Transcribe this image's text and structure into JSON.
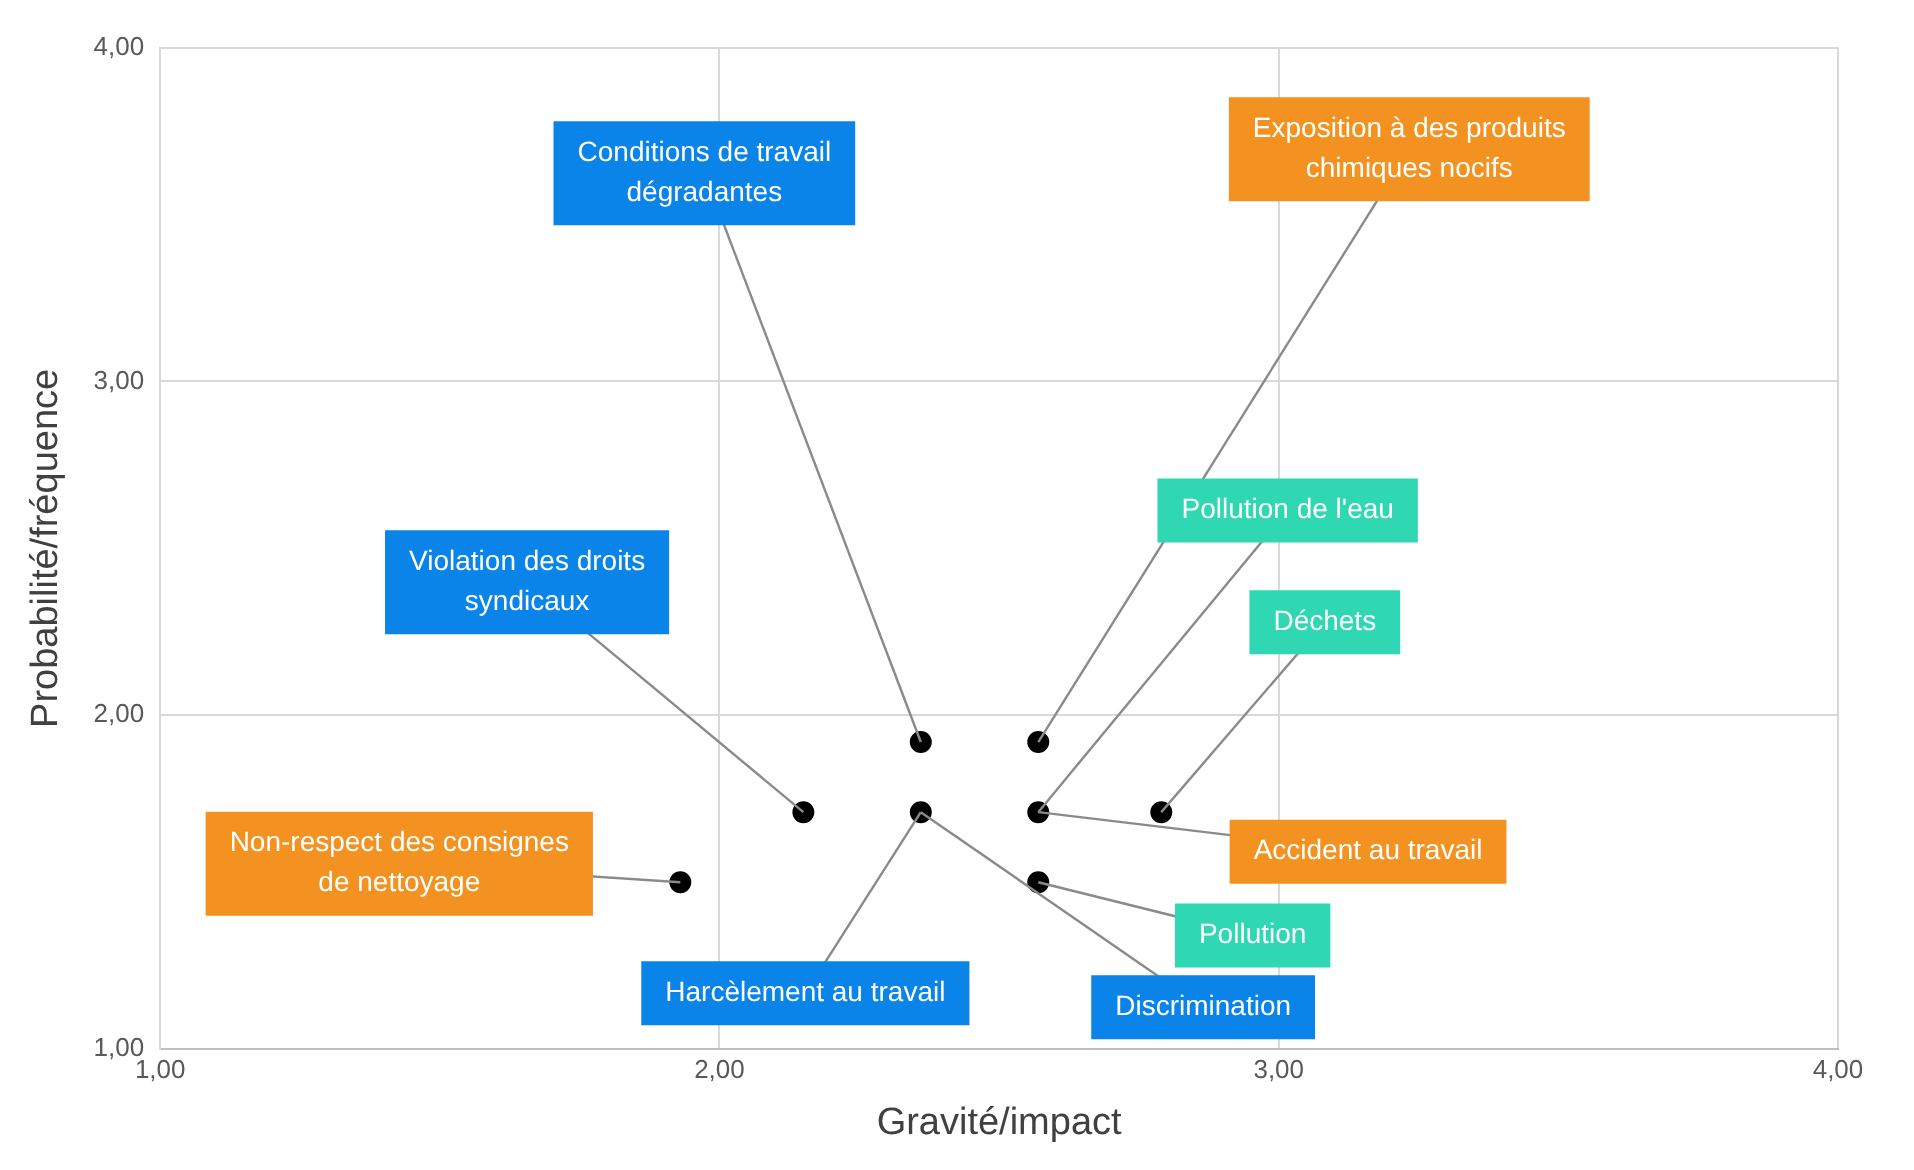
{
  "chart_data": {
    "type": "scatter",
    "xlabel": "Gravité/impact",
    "ylabel": "Probabilité/fréquence",
    "series": [
      {
        "color": "#000000",
        "x": [
          1.93,
          2.15,
          2.36,
          2.36,
          2.57,
          2.57,
          2.57,
          2.79
        ],
        "values": [
          1.5,
          1.71,
          1.92,
          1.71,
          1.92,
          1.71,
          1.5,
          1.71
        ]
      }
    ],
    "marker": "circle",
    "grid": true,
    "legend": false,
    "xlim": [
      1,
      4
    ],
    "xticks": [
      {
        "value": 1,
        "label": "1,00"
      },
      {
        "value": 2,
        "label": "2,00"
      },
      {
        "value": 3,
        "label": "3,00"
      },
      {
        "value": 4,
        "label": "4,00"
      }
    ],
    "ylim": [
      1,
      4
    ],
    "yticks": [
      {
        "value": 1,
        "label": "1,00"
      },
      {
        "value": 2,
        "label": "2,00"
      },
      {
        "value": 3,
        "label": "3,00"
      },
      {
        "value": 4,
        "label": "4,00"
      }
    ],
    "annotations": [
      {
        "text": "Conditions de travail dégradantes",
        "x": 2.36,
        "y": 1.92
      },
      {
        "text": "Exposition à des produits chimiques nocifs",
        "x": 2.57,
        "y": 1.92
      },
      {
        "text": "Pollution de l'eau",
        "x": 2.57,
        "y": 1.71
      },
      {
        "text": "Déchets",
        "x": 2.79,
        "y": 1.71
      },
      {
        "text": "Violation des droits syndicaux",
        "x": 2.15,
        "y": 1.71
      },
      {
        "text": "Non-respect des consignes de nettoyage",
        "x": 1.93,
        "y": 1.5
      },
      {
        "text": "Accident au travail",
        "x": 2.57,
        "y": 1.71
      },
      {
        "text": "Pollution",
        "x": 2.57,
        "y": 1.5
      },
      {
        "text": "Harcèlement au travail",
        "x": 2.36,
        "y": 1.71
      },
      {
        "text": "Discrimination",
        "x": 2.36,
        "y": 1.71
      }
    ]
  }
}
